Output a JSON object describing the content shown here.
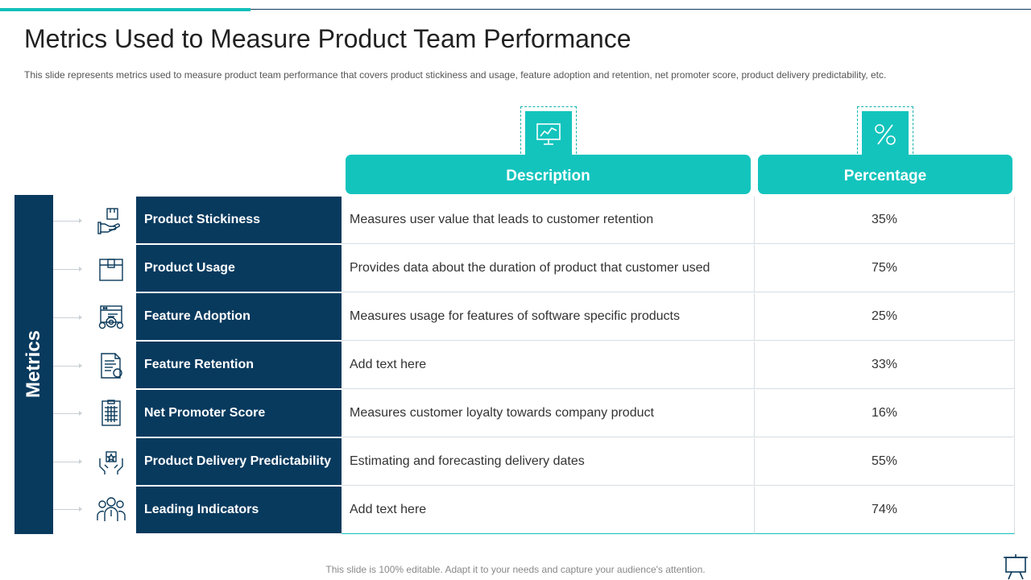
{
  "slide": {
    "title": "Metrics Used to Measure Product Team Performance",
    "subtitle": "This slide represents metrics used to measure product team performance that covers product stickiness and usage, feature adoption and retention, net promoter score, product delivery predictability, etc.",
    "footer": "This slide is 100% editable. Adapt it to your needs and capture your audience's attention."
  },
  "columns": {
    "description": "Description",
    "percentage": "Percentage",
    "description_icon": "monitor-chart-icon",
    "percentage_icon": "percent-icon"
  },
  "side_label": "Metrics",
  "rows": [
    {
      "name": "Product Stickiness",
      "description": "Measures user value that leads to customer retention",
      "percentage": "35%",
      "icon": "hand-box-icon"
    },
    {
      "name": "Product Usage",
      "description": "Provides data about the duration of product that customer used",
      "percentage": "75%",
      "icon": "box-icon"
    },
    {
      "name": "Feature Adoption",
      "description": "Measures usage for features of software specific products",
      "percentage": "25%",
      "icon": "browser-gear-icon"
    },
    {
      "name": "Feature Retention",
      "description": "Add text here",
      "percentage": "33%",
      "icon": "document-badge-icon"
    },
    {
      "name": "Net Promoter Score",
      "description": "Measures customer loyalty towards company product",
      "percentage": "16%",
      "icon": "clipboard-grid-icon"
    },
    {
      "name": "Product Delivery Predictability",
      "description": "Estimating and forecasting delivery dates",
      "percentage": "55%",
      "icon": "hands-star-icon"
    },
    {
      "name": "Leading Indicators",
      "description": "Add text here",
      "percentage": "74%",
      "icon": "team-icon"
    }
  ],
  "colors": {
    "teal": "#13c4bd",
    "navy": "#083a5e"
  }
}
